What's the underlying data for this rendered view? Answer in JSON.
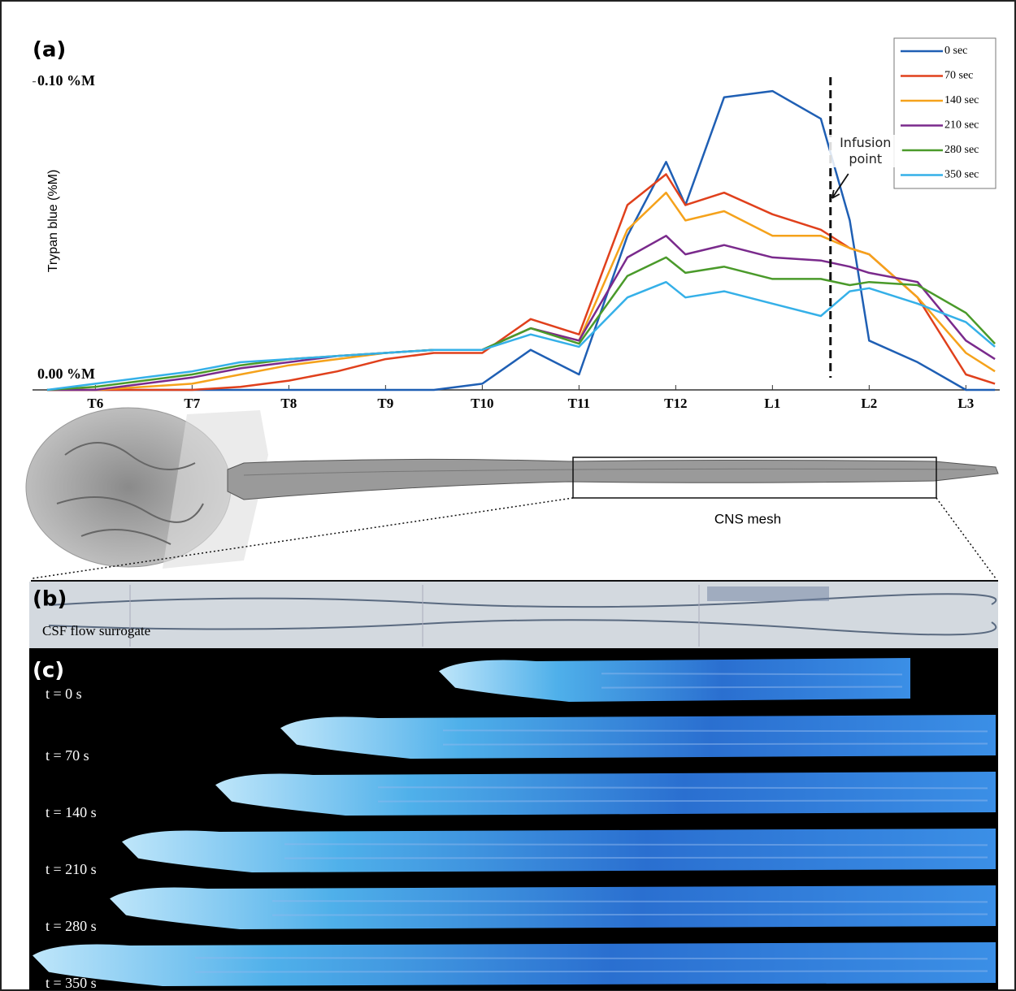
{
  "chart_data": {
    "type": "line",
    "ylabel": "Trypan blue (%M)",
    "x": [
      -0.5,
      0,
      0.5,
      1,
      1.5,
      2,
      2.5,
      3,
      3.5,
      4,
      4.5,
      5,
      5.5,
      5.9,
      6.1,
      6.5,
      7,
      7.5,
      7.8,
      8,
      8.5,
      9,
      9.3
    ],
    "xlim": [
      -0.65,
      9.35
    ],
    "xticks": [
      {
        "value": 0,
        "label": "T6"
      },
      {
        "value": 1,
        "label": "T7"
      },
      {
        "value": 2,
        "label": "T8"
      },
      {
        "value": 3,
        "label": "T9"
      },
      {
        "value": 4,
        "label": "T10"
      },
      {
        "value": 5,
        "label": "T11"
      },
      {
        "value": 6,
        "label": "T12"
      },
      {
        "value": 7,
        "label": "L1"
      },
      {
        "value": 8,
        "label": "L2"
      },
      {
        "value": 9,
        "label": "L3"
      }
    ],
    "ylim": [
      0,
      0.116
    ],
    "yticks": [
      {
        "value": 0,
        "label": "0.00 %M"
      },
      {
        "value": 0.1,
        "label": "0.10 %M"
      }
    ],
    "series": [
      {
        "name": "0 sec",
        "color": "#1f5fb4",
        "values": [
          0,
          0,
          0,
          0,
          0,
          0,
          0,
          0,
          0,
          0.002,
          0.013,
          0.005,
          0.05,
          0.074,
          0.06,
          0.095,
          0.097,
          0.088,
          0.055,
          0.016,
          0.009,
          0,
          0
        ]
      },
      {
        "name": "70 sec",
        "color": "#e0401c",
        "values": [
          0,
          0,
          0,
          0,
          0.001,
          0.003,
          0.006,
          0.01,
          0.012,
          0.012,
          0.023,
          0.018,
          0.06,
          0.07,
          0.06,
          0.064,
          0.057,
          0.052,
          0.046,
          0.044,
          0.03,
          0.005,
          0.002
        ]
      },
      {
        "name": "140 sec",
        "color": "#f5a21b",
        "values": [
          0,
          0,
          0.001,
          0.002,
          0.005,
          0.008,
          0.01,
          0.012,
          0.013,
          0.013,
          0.02,
          0.016,
          0.052,
          0.064,
          0.055,
          0.058,
          0.05,
          0.05,
          0.046,
          0.044,
          0.03,
          0.012,
          0.006
        ]
      },
      {
        "name": "210 sec",
        "color": "#7a2a8c",
        "values": [
          0,
          0,
          0.002,
          0.004,
          0.007,
          0.009,
          0.011,
          0.012,
          0.013,
          0.013,
          0.02,
          0.016,
          0.043,
          0.05,
          0.044,
          0.047,
          0.043,
          0.042,
          0.04,
          0.038,
          0.035,
          0.016,
          0.01
        ]
      },
      {
        "name": "280 sec",
        "color": "#4a9a2a",
        "values": [
          0,
          0.001,
          0.003,
          0.005,
          0.008,
          0.01,
          0.011,
          0.012,
          0.013,
          0.013,
          0.02,
          0.015,
          0.037,
          0.043,
          0.038,
          0.04,
          0.036,
          0.036,
          0.034,
          0.035,
          0.034,
          0.025,
          0.015
        ]
      },
      {
        "name": "350 sec",
        "color": "#35b0e8",
        "values": [
          0,
          0.002,
          0.004,
          0.006,
          0.009,
          0.01,
          0.011,
          0.012,
          0.013,
          0.013,
          0.018,
          0.014,
          0.03,
          0.035,
          0.03,
          0.032,
          0.028,
          0.024,
          0.032,
          0.033,
          0.028,
          0.022,
          0.014
        ]
      }
    ],
    "vline_x": 7.6,
    "annotation": "Infusion point",
    "legend": "top-right"
  },
  "figure": {
    "panel_a": "(a)",
    "panel_b": "(b)",
    "panel_c": "(c)",
    "mesh_label": "CNS mesh",
    "surrogate_label": "CSF flow surrogate",
    "times": [
      "t = 0 s",
      "t = 70 s",
      "t = 140 s",
      "t = 210 s",
      "t = 280 s",
      "t = 350 s"
    ]
  }
}
